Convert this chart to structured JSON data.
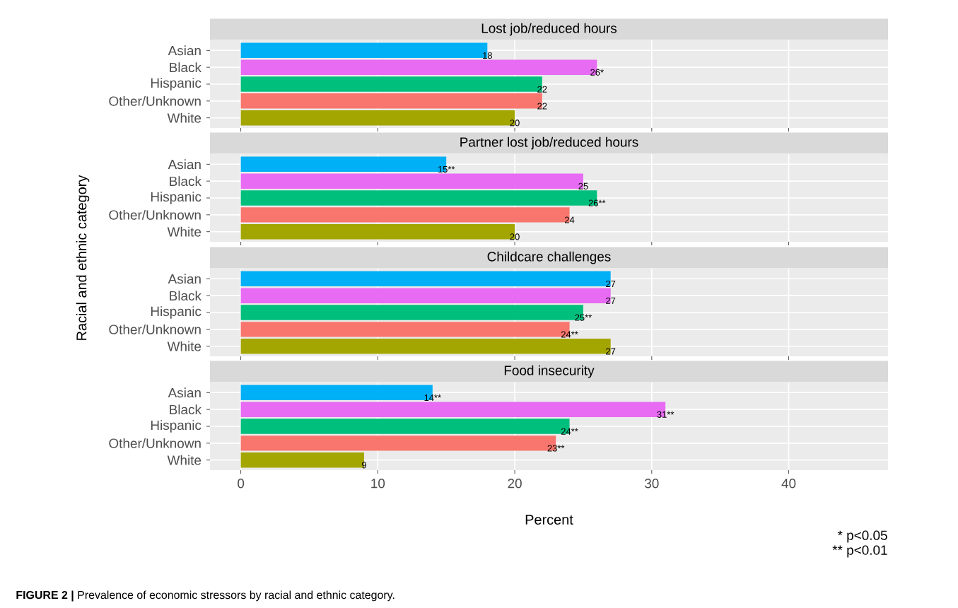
{
  "chart_data": [
    {
      "type": "bar",
      "orientation": "horizontal",
      "title": "Lost job/reduced hours",
      "categories": [
        "Asian",
        "Black",
        "Hispanic",
        "Other/Unknown",
        "White"
      ],
      "values": [
        18,
        26,
        22,
        22,
        20
      ],
      "colors": [
        "#00b0f6",
        "#e76bf3",
        "#00bf7d",
        "#f8766d",
        "#a3a500"
      ],
      "value_labels": [
        "18",
        "26*",
        "22",
        "22",
        "20"
      ],
      "xlim": [
        -2.25,
        47.25
      ],
      "xticks": [
        0,
        10,
        20,
        30,
        40
      ],
      "grid": true,
      "tick_labels": "y"
    },
    {
      "type": "bar",
      "orientation": "horizontal",
      "title": "Partner lost job/reduced hours",
      "ylabel": "Racial and ethnic category",
      "categories": [
        "Asian",
        "Black",
        "Hispanic",
        "Other/Unknown",
        "White"
      ],
      "values": [
        15,
        25,
        26,
        24,
        20
      ],
      "colors": [
        "#00b0f6",
        "#e76bf3",
        "#00bf7d",
        "#f8766d",
        "#a3a500"
      ],
      "value_labels": [
        "15**",
        "25",
        "26**",
        "24",
        "20"
      ],
      "xlim": [
        -2.25,
        47.25
      ],
      "xticks": [
        0,
        10,
        20,
        30,
        40
      ],
      "grid": true,
      "tick_labels": "y"
    },
    {
      "type": "bar",
      "orientation": "horizontal",
      "title": "Childcare challenges",
      "categories": [
        "Asian",
        "Black",
        "Hispanic",
        "Other/Unknown",
        "White"
      ],
      "values": [
        27,
        27,
        25,
        24,
        27
      ],
      "colors": [
        "#00b0f6",
        "#e76bf3",
        "#00bf7d",
        "#f8766d",
        "#a3a500"
      ],
      "value_labels": [
        "27",
        "27",
        "25**",
        "24**",
        "27"
      ],
      "xlim": [
        -2.25,
        47.25
      ],
      "xticks": [
        0,
        10,
        20,
        30,
        40
      ],
      "grid": true,
      "tick_labels": "y"
    },
    {
      "type": "bar",
      "orientation": "horizontal",
      "title": "Food insecurity",
      "xlabel": "Percent",
      "categories": [
        "Asian",
        "Black",
        "Hispanic",
        "Other/Unknown",
        "White"
      ],
      "values": [
        14,
        31,
        24,
        23,
        9
      ],
      "colors": [
        "#00b0f6",
        "#e76bf3",
        "#00bf7d",
        "#f8766d",
        "#a3a500"
      ],
      "value_labels": [
        "14**",
        "31**",
        "24**",
        "23**",
        "9"
      ],
      "xlim": [
        -2.25,
        47.25
      ],
      "xticks": [
        0,
        10,
        20,
        30,
        40
      ],
      "grid": true,
      "annotations": [
        "* p<0.05",
        "** p<0.01",
        "**FIGURE 2 |** Prevalence of economic stressors by racial and ethnic category."
      ]
    }
  ]
}
